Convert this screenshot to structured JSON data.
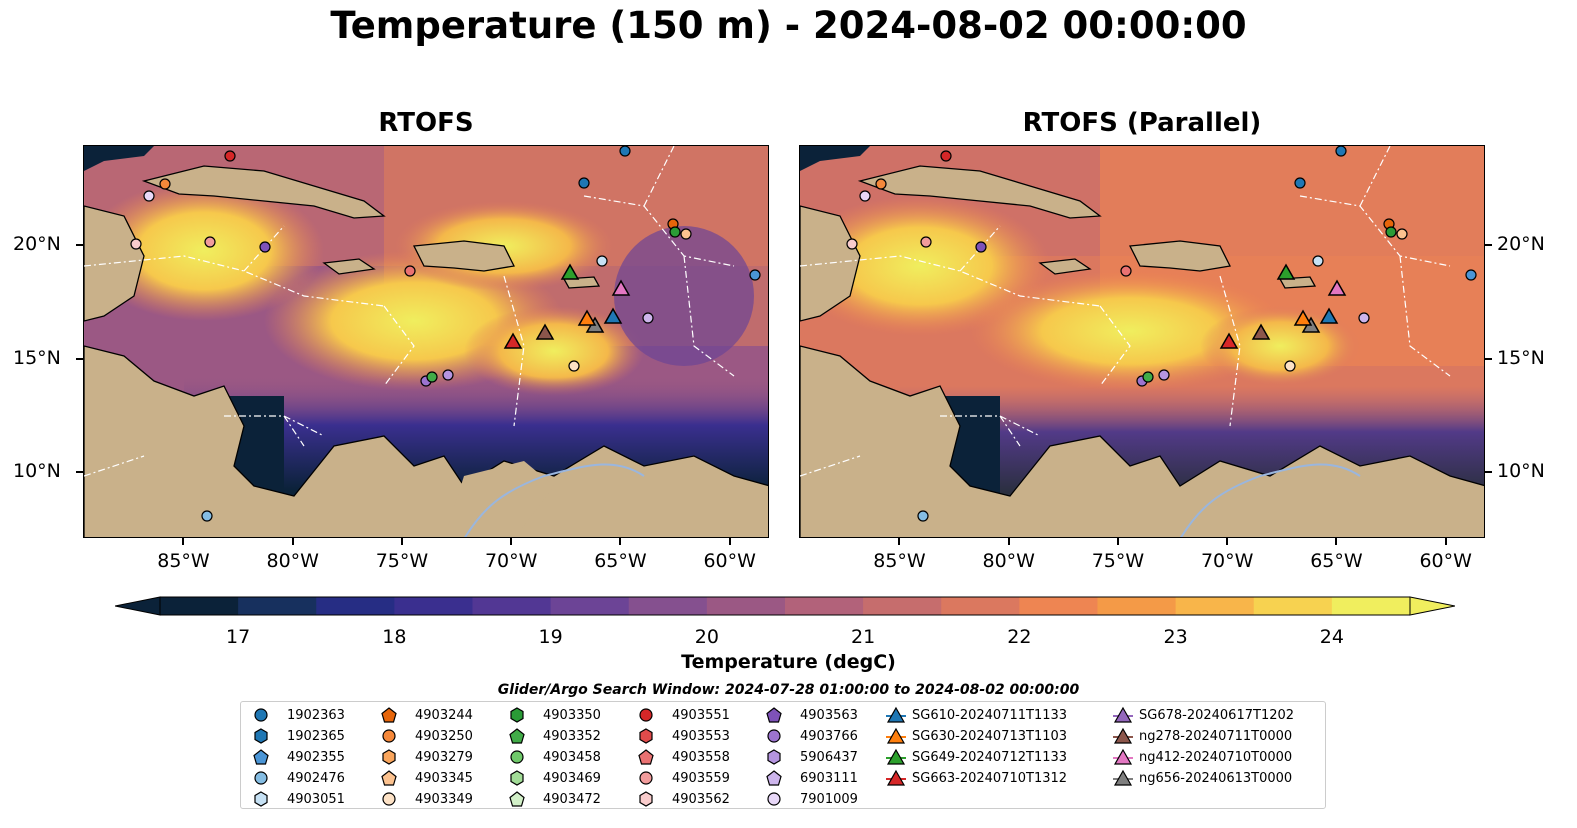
{
  "title": "Temperature (150 m) - 2024-08-02 00:00:00",
  "panels": [
    {
      "title": "RTOFS"
    },
    {
      "title": "RTOFS (Parallel)"
    }
  ],
  "axes": {
    "lon_labels": [
      "85°W",
      "80°W",
      "75°W",
      "70°W",
      "65°W",
      "60°W"
    ],
    "lon_values": [
      -85,
      -80,
      -75,
      -70,
      -65,
      -60
    ],
    "lat_labels": [
      "20°N",
      "15°N",
      "10°N"
    ],
    "lat_values": [
      20,
      15,
      10
    ],
    "lon_range": [
      -89.6,
      -58.2
    ],
    "lat_range": [
      7.1,
      24.4
    ]
  },
  "colorbar": {
    "label": "Temperature (degC)",
    "ticks": [
      "17",
      "18",
      "19",
      "20",
      "21",
      "22",
      "23",
      "24"
    ],
    "tick_values": [
      17,
      18,
      19,
      20,
      21,
      22,
      23,
      24
    ],
    "range": [
      16.5,
      24.5
    ],
    "extend": "both",
    "colors": [
      "#0b2239",
      "#17305e",
      "#262d84",
      "#3a2f8f",
      "#523794",
      "#6c4496",
      "#85508f",
      "#9b5884",
      "#b2627a",
      "#c66d6d",
      "#db785f",
      "#ee8552",
      "#f49a47",
      "#f8b54a",
      "#f7d250",
      "#f0ee5e"
    ]
  },
  "search_window": "Glider/Argo Search Window: 2024-07-28 01:00:00 to 2024-08-02 00:00:00",
  "legend": {
    "columns": [
      [
        {
          "label": "1902363",
          "marker": "circle",
          "color": "#1f77b4"
        },
        {
          "label": "1902365",
          "marker": "hexagon",
          "color": "#1f77b4"
        },
        {
          "label": "4902355",
          "marker": "pentagon",
          "color": "#4a95d6"
        },
        {
          "label": "4902476",
          "marker": "circle",
          "color": "#85bde3"
        },
        {
          "label": "4903051",
          "marker": "hexagon",
          "color": "#c6e1f4"
        }
      ],
      [
        {
          "label": "4903244",
          "marker": "pentagon",
          "color": "#e6650a"
        },
        {
          "label": "4903250",
          "marker": "circle",
          "color": "#f5883a"
        },
        {
          "label": "4903279",
          "marker": "hexagon",
          "color": "#f9a55c"
        },
        {
          "label": "4903345",
          "marker": "pentagon",
          "color": "#fcc28f"
        },
        {
          "label": "4903349",
          "marker": "circle",
          "color": "#fde2c6"
        }
      ],
      [
        {
          "label": "4903350",
          "marker": "hexagon",
          "color": "#2a9b36"
        },
        {
          "label": "4903352",
          "marker": "pentagon",
          "color": "#41ac48"
        },
        {
          "label": "4903458",
          "marker": "circle",
          "color": "#6fc96a"
        },
        {
          "label": "4903469",
          "marker": "hexagon",
          "color": "#a2dc97"
        },
        {
          "label": "4903472",
          "marker": "pentagon",
          "color": "#d2f0c8"
        }
      ],
      [
        {
          "label": "4903551",
          "marker": "circle",
          "color": "#d62728"
        },
        {
          "label": "4903553",
          "marker": "hexagon",
          "color": "#e04b4b"
        },
        {
          "label": "4903558",
          "marker": "pentagon",
          "color": "#ea7272"
        },
        {
          "label": "4903559",
          "marker": "circle",
          "color": "#f29c9c"
        },
        {
          "label": "4903562",
          "marker": "hexagon",
          "color": "#f9cccc"
        }
      ],
      [
        {
          "label": "4903563",
          "marker": "pentagon",
          "color": "#7e52b8"
        },
        {
          "label": "4903766",
          "marker": "circle",
          "color": "#9c74cf"
        },
        {
          "label": "5906437",
          "marker": "hexagon",
          "color": "#b595e0"
        },
        {
          "label": "6903111",
          "marker": "pentagon",
          "color": "#cdb5ec"
        },
        {
          "label": "7901009",
          "marker": "circle",
          "color": "#e8d8f8"
        }
      ],
      [
        {
          "label": "SG610-20240711T1133",
          "marker": "triangle",
          "color": "#1f77b4"
        },
        {
          "label": "SG630-20240713T1103",
          "marker": "triangle",
          "color": "#ff7f0e"
        },
        {
          "label": "SG649-20240712T1133",
          "marker": "triangle",
          "color": "#2ca02c"
        },
        {
          "label": "SG663-20240710T1312",
          "marker": "triangle",
          "color": "#d62728"
        }
      ],
      [
        {
          "label": "SG678-20240617T1202",
          "marker": "triangle",
          "color": "#9467bd"
        },
        {
          "label": "ng278-20240711T0000",
          "marker": "triangle",
          "color": "#8c564b"
        },
        {
          "label": "ng412-20240710T0000",
          "marker": "triangle",
          "color": "#e377c2"
        },
        {
          "label": "ng656-20240613T0000",
          "marker": "triangle",
          "color": "#7f7f7f"
        }
      ]
    ]
  }
}
